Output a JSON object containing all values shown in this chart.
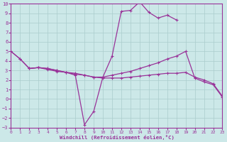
{
  "xlabel": "Windchill (Refroidissement éolien,°C)",
  "color": "#993399",
  "bg_color": "#cce8e8",
  "grid_color": "#aacccc",
  "xlim": [
    0,
    23
  ],
  "ylim": [
    -3,
    10
  ],
  "yticks": [
    -3,
    -2,
    -1,
    0,
    1,
    2,
    3,
    4,
    5,
    6,
    7,
    8,
    9,
    10
  ],
  "xticks": [
    0,
    1,
    2,
    3,
    4,
    5,
    6,
    7,
    8,
    9,
    10,
    11,
    12,
    13,
    14,
    15,
    16,
    17,
    18,
    19,
    20,
    21,
    22,
    23
  ],
  "line1_x": [
    0,
    1,
    2,
    3,
    4,
    5,
    6,
    7,
    8,
    9,
    10,
    11,
    12,
    13,
    14,
    15,
    16,
    17,
    18
  ],
  "line1_y": [
    5.0,
    4.2,
    3.2,
    3.3,
    3.2,
    3.0,
    2.8,
    2.5,
    -2.7,
    -1.3,
    2.3,
    4.5,
    9.2,
    9.3,
    10.2,
    9.1,
    8.5,
    8.8,
    8.3
  ],
  "line2_x": [
    0,
    1,
    2,
    3,
    4,
    5,
    6,
    7,
    8,
    9,
    10,
    11,
    12,
    13,
    14,
    15,
    16,
    17,
    18,
    19,
    20,
    21,
    22,
    23
  ],
  "line2_y": [
    5.0,
    4.2,
    3.2,
    3.3,
    3.2,
    3.0,
    2.8,
    2.7,
    2.5,
    2.3,
    2.3,
    2.5,
    2.7,
    2.9,
    3.2,
    3.5,
    3.8,
    4.2,
    4.5,
    5.0,
    2.2,
    1.8,
    1.5,
    0.2
  ],
  "line3_x": [
    2,
    3,
    4,
    5,
    6,
    7,
    8,
    9,
    10,
    11,
    12,
    13,
    14,
    15,
    16,
    17,
    18,
    19,
    20,
    21,
    22,
    23
  ],
  "line3_y": [
    3.2,
    3.3,
    3.1,
    2.9,
    2.8,
    2.6,
    2.5,
    2.3,
    2.2,
    2.2,
    2.2,
    2.3,
    2.4,
    2.5,
    2.6,
    2.7,
    2.7,
    2.8,
    2.3,
    2.0,
    1.6,
    0.3
  ]
}
